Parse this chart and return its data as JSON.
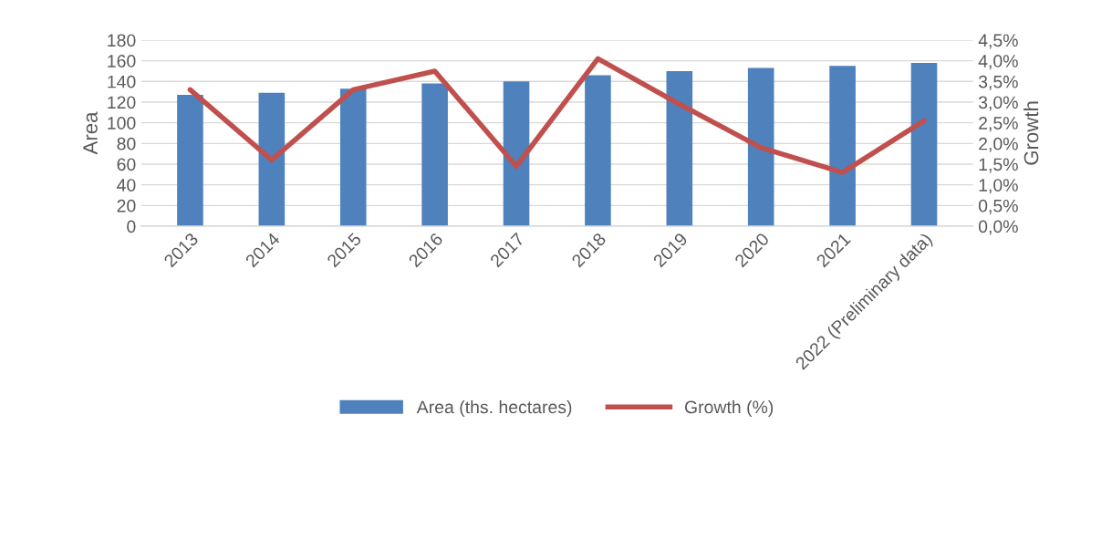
{
  "chart_data": {
    "type": "bar",
    "ylabel": "Area",
    "y2label": "Growth",
    "categories": [
      "2013",
      "2014",
      "2015",
      "2016",
      "2017",
      "2018",
      "2019",
      "2020",
      "2021",
      "2022 (Preliminary data)"
    ],
    "series": [
      {
        "name": "Area (ths. hectares)",
        "color": "#4f81bd",
        "values": [
          127,
          129,
          133,
          138,
          140,
          146,
          150,
          153,
          155,
          158
        ]
      },
      {
        "name": "Growth (%)",
        "type": "line",
        "axis": "y2",
        "color": "#c0504d",
        "values": [
          3.3,
          1.6,
          3.3,
          3.75,
          1.45,
          4.05,
          2.95,
          1.9,
          1.3,
          2.55
        ]
      }
    ],
    "ylim": [
      0,
      180
    ],
    "yticks": [
      0,
      20,
      40,
      60,
      80,
      100,
      120,
      140,
      160,
      180
    ],
    "y2lim": [
      0,
      4.5
    ],
    "y2ticks": [
      {
        "value": 0,
        "label": "0,0%"
      },
      {
        "value": 0.5,
        "label": "0,5%"
      },
      {
        "value": 1,
        "label": "1,0%"
      },
      {
        "value": 1.5,
        "label": "1,5%"
      },
      {
        "value": 2,
        "label": "2,0%"
      },
      {
        "value": 2.5,
        "label": "2,5%"
      },
      {
        "value": 3,
        "label": "3,0%"
      },
      {
        "value": 3.5,
        "label": "3,5%"
      },
      {
        "value": 4,
        "label": "4,0%"
      },
      {
        "value": 4.5,
        "label": "4,5%"
      }
    ],
    "grid": "y",
    "legend": "bottom"
  }
}
